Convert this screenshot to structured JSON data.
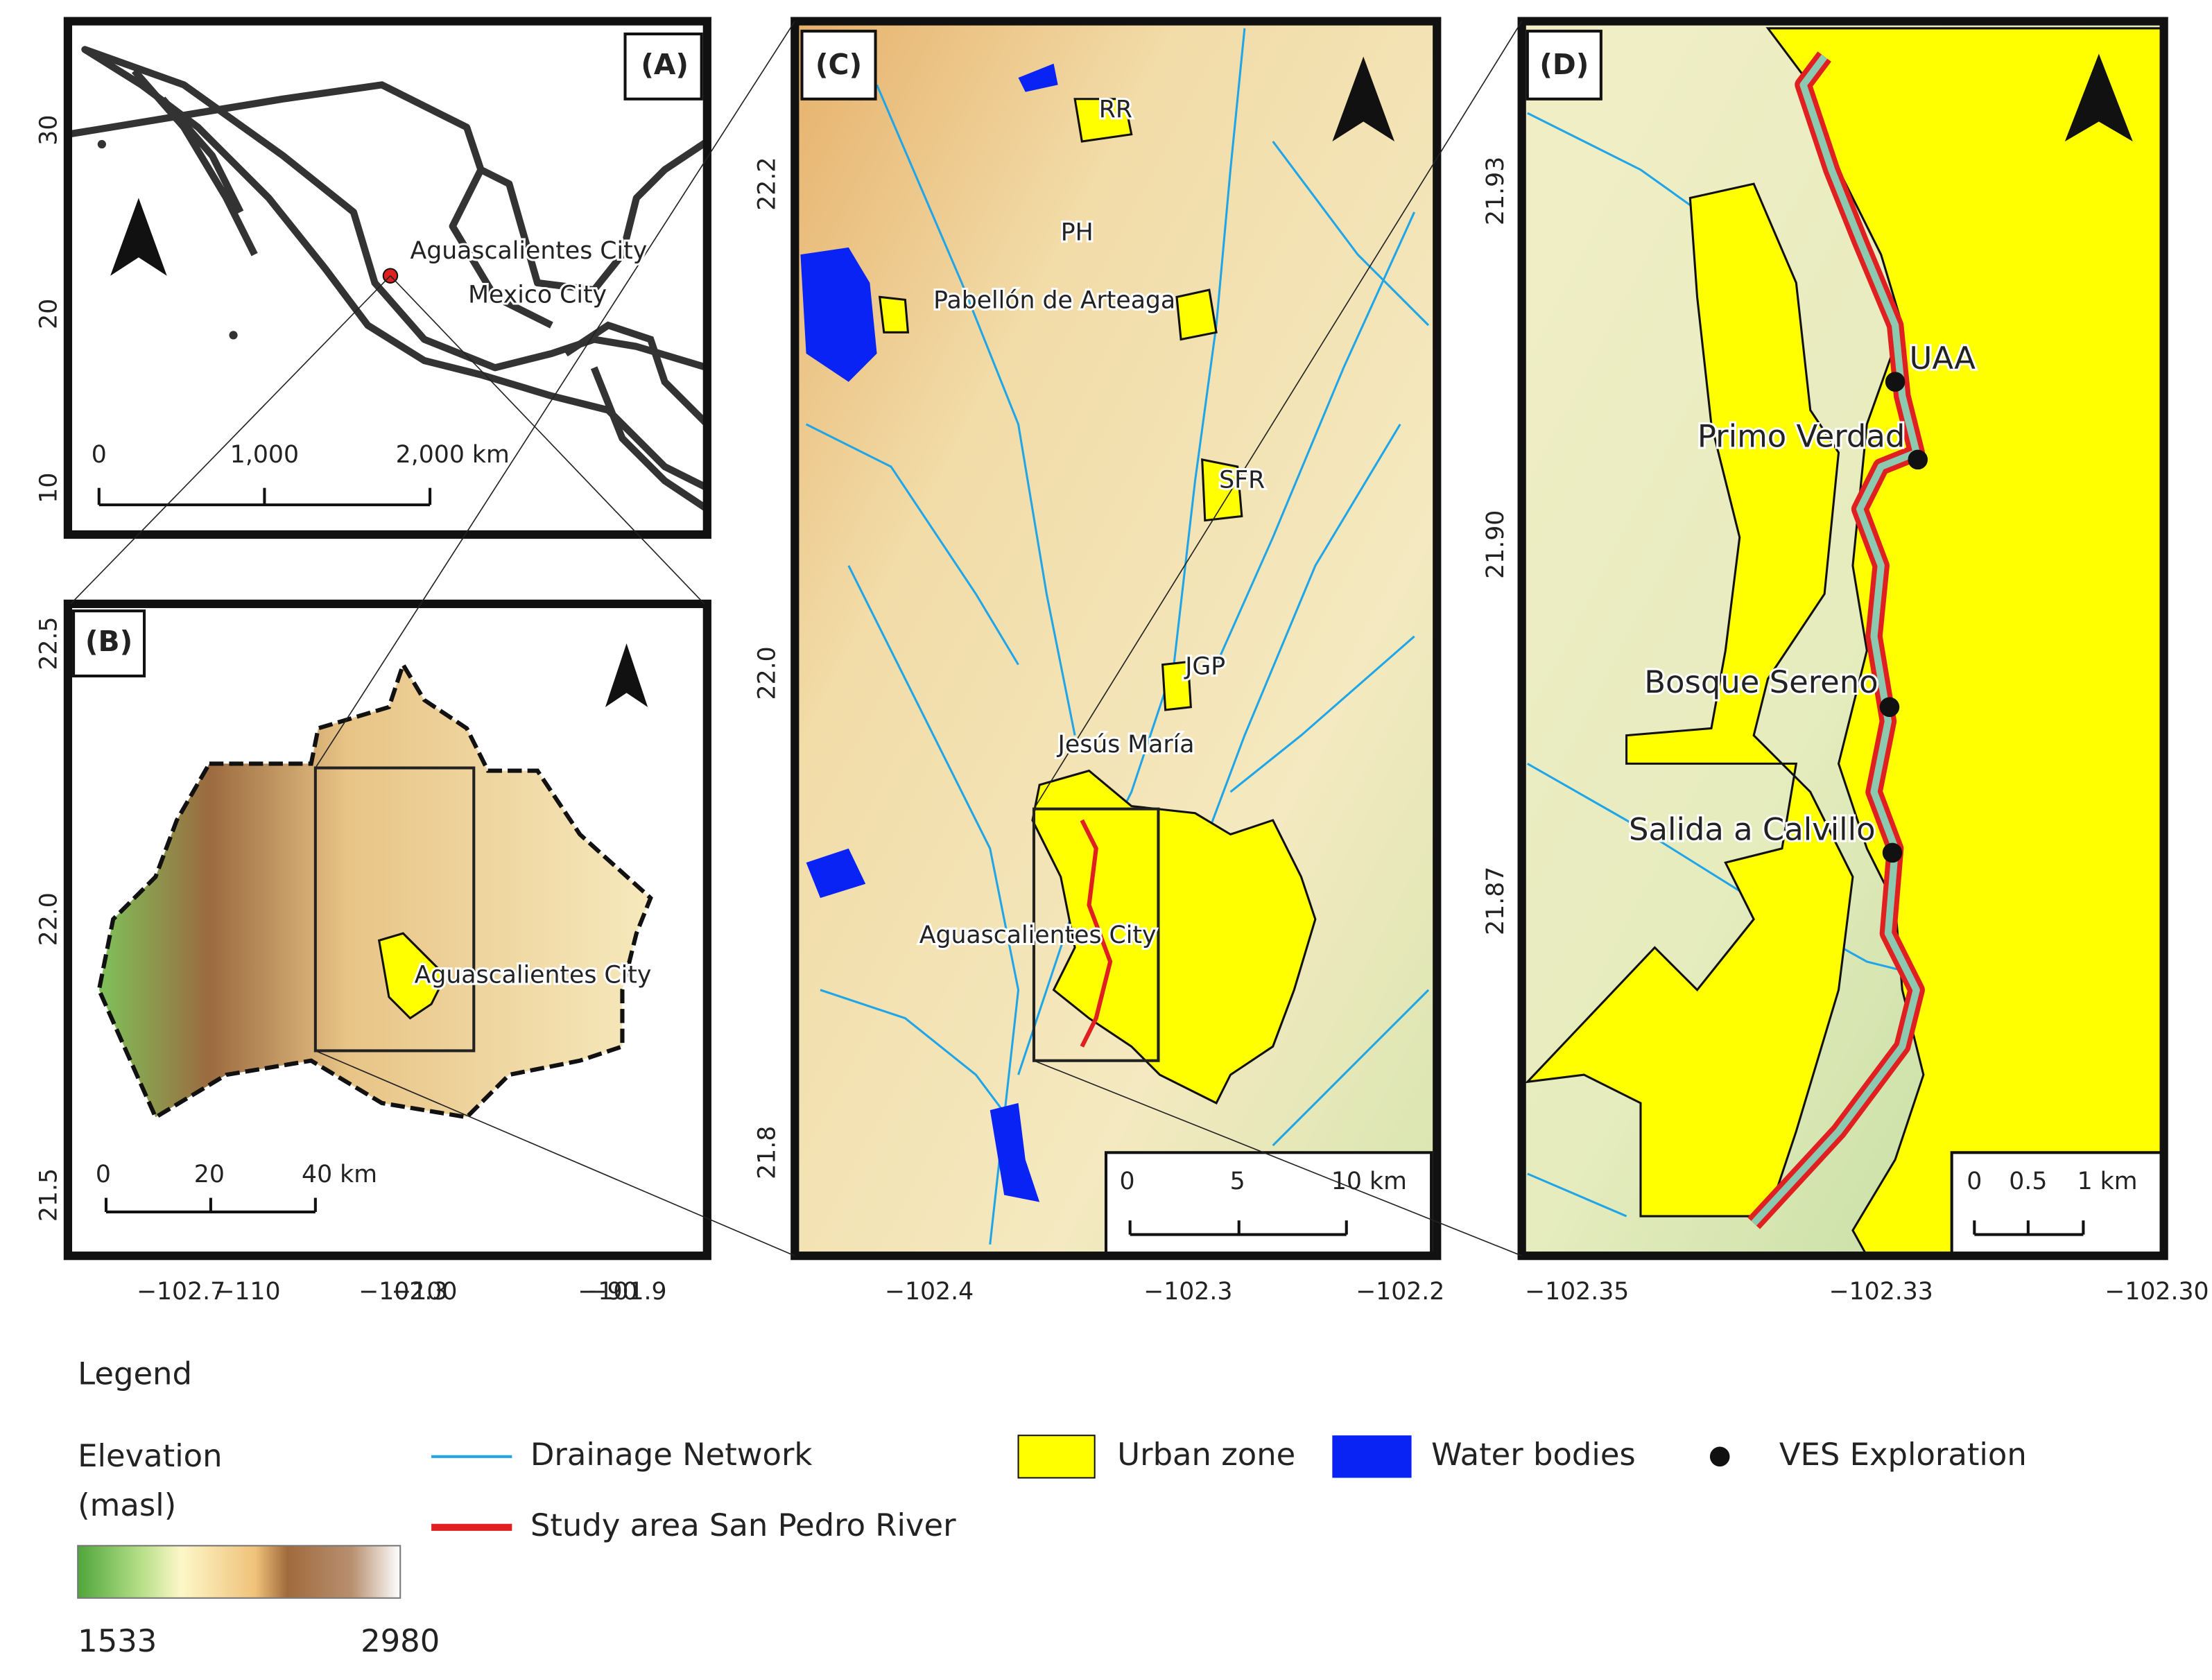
{
  "panels": [
    {
      "label": "(A)",
      "yticks": [
        "30",
        "20",
        "10"
      ],
      "xticks": [
        "−110",
        "−100",
        "−90"
      ],
      "places": [
        "Aguascalientes City",
        "Mexico City"
      ],
      "scale": [
        "0",
        "1,000",
        "2,000 km"
      ]
    },
    {
      "label": "(B)",
      "yticks": [
        "22.5",
        "22.0",
        "21.5"
      ],
      "xticks": [
        "−102.7",
        "−102.3",
        "−101.9"
      ],
      "places": [
        "Aguascalientes City"
      ],
      "scale": [
        "0",
        "20",
        "40 km"
      ]
    },
    {
      "label": "(C)",
      "yticks": [
        "22.2",
        "22.0",
        "21.8"
      ],
      "xticks": [
        "−102.4",
        "−102.3",
        "−102.2"
      ],
      "places": [
        "RR",
        "PH",
        "Pabellón de Arteaga",
        "SFR",
        "JGP",
        "Jesús María",
        "Aguascalientes City"
      ],
      "scale": [
        "0",
        "5",
        "10 km"
      ]
    },
    {
      "label": "(D)",
      "yticks": [
        "21.93",
        "21.90",
        "21.87"
      ],
      "xticks": [
        "−102.35",
        "−102.33",
        "−102.30"
      ],
      "places": [
        "UAA",
        "Primo Verdad",
        "Bosque Sereno",
        "Salida a Calvillo"
      ],
      "scale": [
        "0",
        "0.5",
        "1 km"
      ]
    }
  ],
  "legend": {
    "title": "Legend",
    "elevation": [
      "Elevation",
      "(masl)"
    ],
    "ramp_min": "1533",
    "ramp_max": "2980",
    "items": [
      "Drainage Network",
      "Study area San Pedro River",
      "Urban zone",
      "Water bodies",
      "VES Exploration"
    ]
  }
}
